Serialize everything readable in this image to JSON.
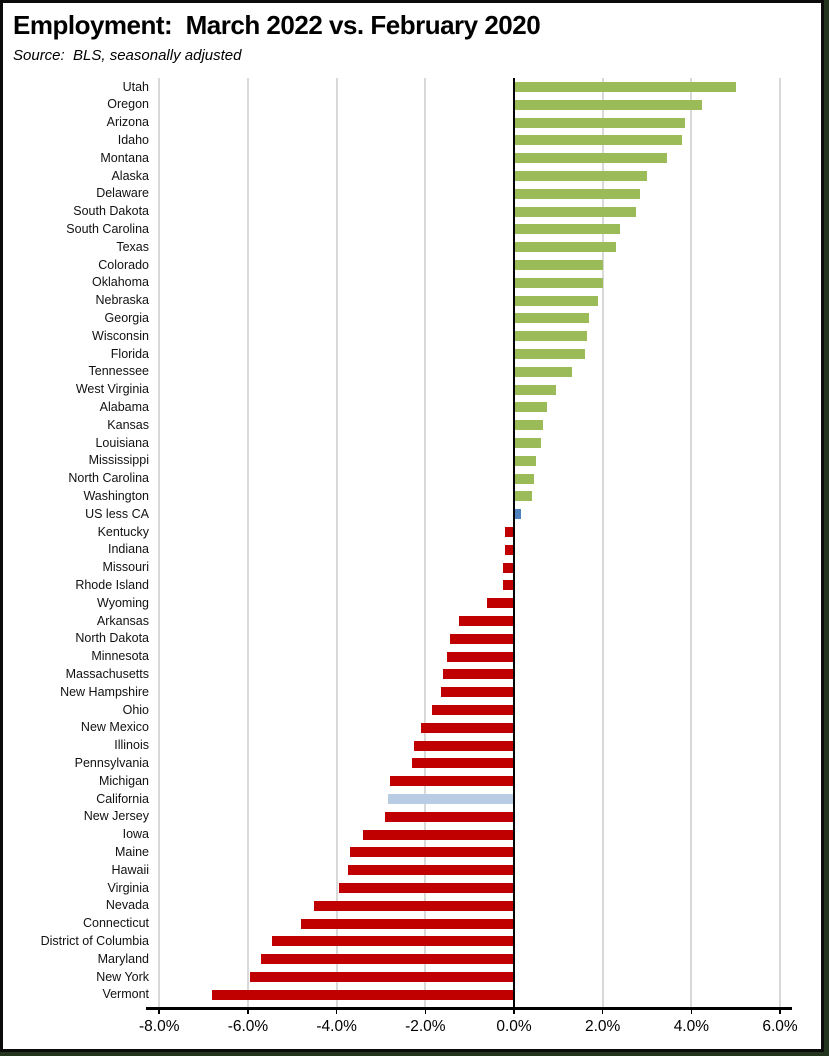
{
  "title": "Employment:  March 2022 vs. February 2020",
  "subtitle": "Source:  BLS, seasonally adjusted",
  "chart_data": {
    "type": "bar",
    "orientation": "horizontal",
    "title": "Employment:  March 2022 vs. February 2020",
    "subtitle": "Source:  BLS, seasonally adjusted",
    "xlabel": "",
    "ylabel": "",
    "unit": "percent",
    "xlim": [
      -8.3,
      6.3
    ],
    "grid": true,
    "x_tick_labels": [
      "-8.0%",
      "-6.0%",
      "-4.0%",
      "-2.0%",
      "0.0%",
      "2.0%",
      "4.0%",
      "6.0%"
    ],
    "x_tick_values": [
      -8,
      -6,
      -4,
      -2,
      0,
      2,
      4,
      6
    ],
    "colors": {
      "positive": "#9BBB59",
      "negative": "#C00000",
      "us_less_ca_highlight": "#4F81BD",
      "california_highlight": "#B8CCE4",
      "gridline": "#d9d9d9",
      "axis": "#000000"
    },
    "highlights": {
      "US less CA": "#4F81BD",
      "California": "#B8CCE4"
    },
    "categories": [
      "Utah",
      "Oregon",
      "Arizona",
      "Idaho",
      "Montana",
      "Alaska",
      "Delaware",
      "South Dakota",
      "South Carolina",
      "Texas",
      "Colorado",
      "Oklahoma",
      "Nebraska",
      "Georgia",
      "Wisconsin",
      "Florida",
      "Tennessee",
      "West Virginia",
      "Alabama",
      "Kansas",
      "Louisiana",
      "Mississippi",
      "North Carolina",
      "Washington",
      "US less CA",
      "Kentucky",
      "Indiana",
      "Missouri",
      "Rhode Island",
      "Wyoming",
      "Arkansas",
      "North Dakota",
      "Minnesota",
      "Massachusetts",
      "New Hampshire",
      "Ohio",
      "New Mexico",
      "Illinois",
      "Pennsylvania",
      "Michigan",
      "California",
      "New Jersey",
      "Iowa",
      "Maine",
      "Hawaii",
      "Virginia",
      "Nevada",
      "Connecticut",
      "District of Columbia",
      "Maryland",
      "New York",
      "Vermont"
    ],
    "values": [
      5.0,
      4.25,
      3.85,
      3.8,
      3.45,
      3.0,
      2.85,
      2.75,
      2.4,
      2.3,
      2.0,
      2.0,
      1.9,
      1.7,
      1.65,
      1.6,
      1.3,
      0.95,
      0.75,
      0.65,
      0.6,
      0.5,
      0.45,
      0.4,
      0.15,
      -0.2,
      -0.2,
      -0.25,
      -0.25,
      -0.6,
      -1.25,
      -1.45,
      -1.5,
      -1.6,
      -1.65,
      -1.85,
      -2.1,
      -2.25,
      -2.3,
      -2.8,
      -2.85,
      -2.9,
      -3.4,
      -3.7,
      -3.75,
      -3.95,
      -4.5,
      -4.8,
      -5.45,
      -5.7,
      -5.95,
      -6.8
    ]
  }
}
